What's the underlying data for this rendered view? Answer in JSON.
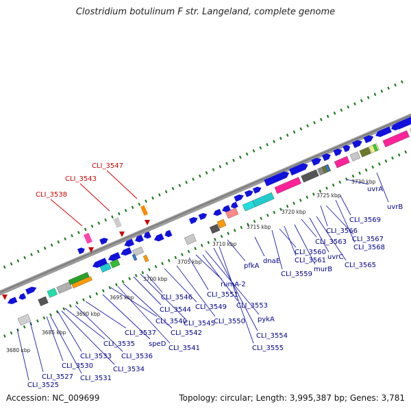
{
  "title": "Clostridium botulinum F str. Langeland, complete genome",
  "footer": {
    "accession": "Accession: NC_009699",
    "summary": "Topology: circular; Length: 3,995,387 bp; Genes: 3,781"
  },
  "colors": {
    "backbone": "#8a8a8a",
    "gene_default": "#1111dd",
    "label_gene": "#00008b",
    "label_highlight": "#d00000",
    "tick": "#1f7a1f",
    "marker": "#cc0000"
  },
  "axis": {
    "unit": "kbp",
    "ticks": [
      {
        "label": "3680 kbp"
      },
      {
        "label": "3685 kbp"
      },
      {
        "label": "3690 kbp"
      },
      {
        "label": "3695 kbp"
      },
      {
        "label": "3700 kbp"
      },
      {
        "label": "3705 kbp"
      },
      {
        "label": "3710 kbp"
      },
      {
        "label": "3715 kbp"
      },
      {
        "label": "3720 kbp"
      },
      {
        "label": "3725 kbp"
      },
      {
        "label": "3730 kbp"
      }
    ]
  },
  "highlighted_genes": [
    {
      "label": "CLI_3538"
    },
    {
      "label": "CLI_3543"
    },
    {
      "label": "CLI_3547"
    }
  ],
  "gene_labels": [
    {
      "label": "CLI_3525"
    },
    {
      "label": "CLI_3527"
    },
    {
      "label": "CLI_3530"
    },
    {
      "label": "CLI_3531"
    },
    {
      "label": "CLI_3533"
    },
    {
      "label": "CLI_3534"
    },
    {
      "label": "CLI_3535"
    },
    {
      "label": "CLI_3536"
    },
    {
      "label": "CLI_3537"
    },
    {
      "label": "speD"
    },
    {
      "label": "CLI_3540"
    },
    {
      "label": "CLI_3541"
    },
    {
      "label": "CLI_3542"
    },
    {
      "label": "CLI_3544"
    },
    {
      "label": "CLI_3545"
    },
    {
      "label": "CLI_3546"
    },
    {
      "label": "CLI_3549"
    },
    {
      "label": "CLI_3550"
    },
    {
      "label": "CLI_3551"
    },
    {
      "label": "rumA-2"
    },
    {
      "label": "CLI_3553"
    },
    {
      "label": "pykA"
    },
    {
      "label": "CLI_3554"
    },
    {
      "label": "CLI_3555"
    },
    {
      "label": "pfkA"
    },
    {
      "label": "dnaE"
    },
    {
      "label": "CLI_3559"
    },
    {
      "label": "CLI_3560"
    },
    {
      "label": "CLI_3561"
    },
    {
      "label": "murB"
    },
    {
      "label": "CLI_3563"
    },
    {
      "label": "uvrC"
    },
    {
      "label": "CLI_3565"
    },
    {
      "label": "CLI_3566"
    },
    {
      "label": "CLI_3567"
    },
    {
      "label": "CLI_3568"
    },
    {
      "label": "CLI_3569"
    },
    {
      "label": "uvrA"
    },
    {
      "label": "uvrB"
    }
  ]
}
